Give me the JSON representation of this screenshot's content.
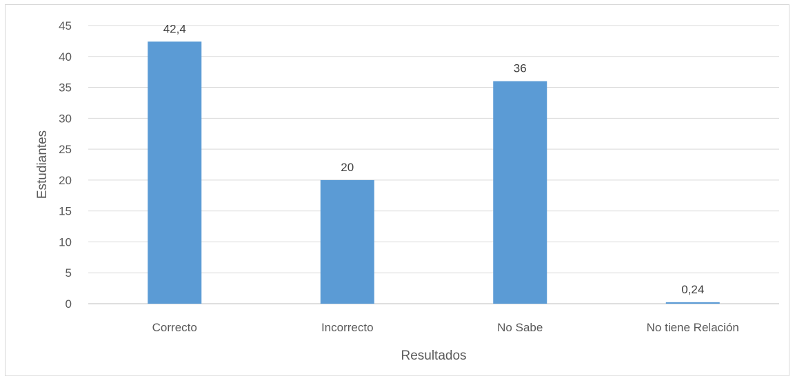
{
  "chart_data": {
    "type": "bar",
    "categories": [
      "Correcto",
      "Incorrecto",
      "No Sabe",
      "No tiene Relación"
    ],
    "values": [
      42.4,
      20,
      36,
      0.24
    ],
    "data_labels": [
      "42,4",
      "20",
      "36",
      "0,24"
    ],
    "title": "",
    "xlabel": "Resultados",
    "ylabel": "Estudiantes",
    "ylim": [
      0,
      45
    ],
    "yticks": [
      0,
      5,
      10,
      15,
      20,
      25,
      30,
      35,
      40,
      45
    ],
    "grid": true,
    "legend": "none",
    "bar_color": "#5b9bd5"
  }
}
